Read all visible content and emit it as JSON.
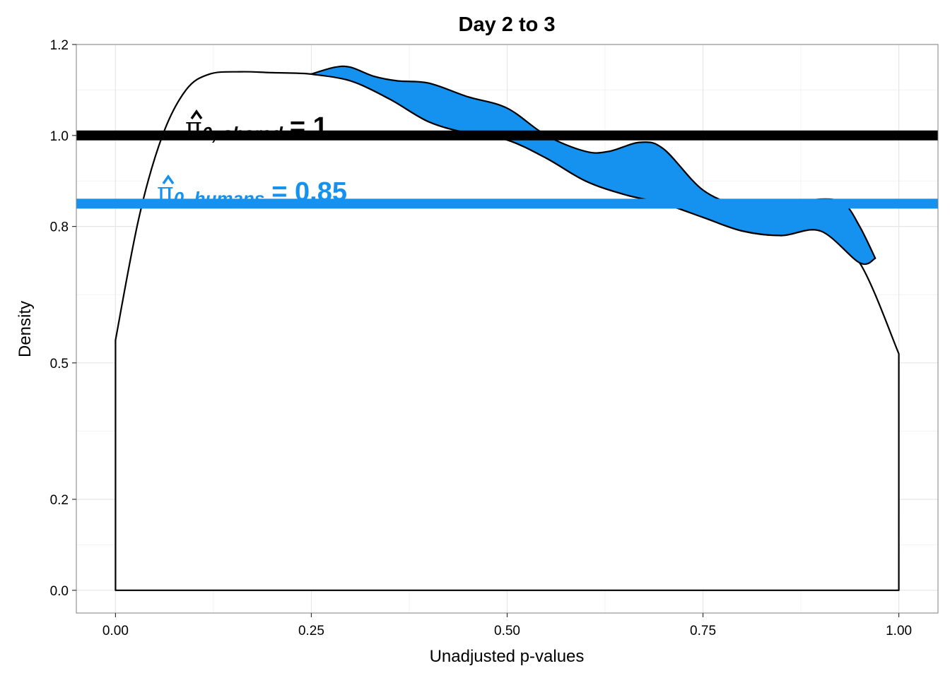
{
  "chart_data": {
    "type": "area",
    "title": "Day 2 to 3",
    "xlabel": "Unadjusted p-values",
    "ylabel": "Density",
    "xlim": [
      -0.05,
      1.05
    ],
    "ylim": [
      -0.05,
      1.2
    ],
    "grid": true,
    "x_ticks": [
      {
        "value": 0.0,
        "label": "0.00"
      },
      {
        "value": 0.25,
        "label": "0.25"
      },
      {
        "value": 0.5,
        "label": "0.50"
      },
      {
        "value": 0.75,
        "label": "0.75"
      },
      {
        "value": 1.0,
        "label": "1.00"
      }
    ],
    "y_ticks": [
      {
        "value": 0.0,
        "label": "0.0"
      },
      {
        "value": 0.2,
        "label": "0.2"
      },
      {
        "value": 0.5,
        "label": "0.5"
      },
      {
        "value": 0.8,
        "label": "0.8"
      },
      {
        "value": 1.0,
        "label": "1.0"
      },
      {
        "value": 1.2,
        "label": "1.2"
      }
    ],
    "series": [
      {
        "role": "shared density",
        "fill": "#ffffff",
        "stroke": "#000000",
        "x": [
          0.0,
          0.03,
          0.06,
          0.09,
          0.12,
          0.16,
          0.2,
          0.25,
          0.3,
          0.35,
          0.4,
          0.45,
          0.5,
          0.55,
          0.6,
          0.65,
          0.7,
          0.75,
          0.8,
          0.85,
          0.9,
          0.95,
          1.0
        ],
        "y": [
          0.55,
          0.82,
          1.0,
          1.1,
          1.135,
          1.14,
          1.138,
          1.135,
          1.12,
          1.08,
          1.03,
          1.005,
          0.99,
          0.95,
          0.9,
          0.87,
          0.85,
          0.82,
          0.79,
          0.78,
          0.79,
          0.72,
          0.52
        ]
      },
      {
        "role": "humans density",
        "fill": "#1592ef",
        "stroke": "#000000",
        "x": [
          0.25,
          0.28,
          0.3,
          0.33,
          0.36,
          0.4,
          0.45,
          0.5,
          0.55,
          0.6,
          0.63,
          0.67,
          0.7,
          0.75,
          0.8,
          0.85,
          0.9,
          0.93,
          0.95,
          0.97
        ],
        "y": [
          1.135,
          1.15,
          1.15,
          1.13,
          1.12,
          1.115,
          1.085,
          1.06,
          1.0,
          0.965,
          0.965,
          0.985,
          0.97,
          0.88,
          0.845,
          0.845,
          0.86,
          0.85,
          0.8,
          0.73
        ]
      }
    ],
    "hlines": [
      {
        "y": 1.0,
        "color": "#000000"
      },
      {
        "y": 0.85,
        "color": "#1592ef"
      }
    ],
    "annotations": [
      {
        "symbol": "π",
        "subscript": "0, shared",
        "value": "= 1",
        "color": "#000000"
      },
      {
        "symbol": "π",
        "subscript": "0, humans",
        "value": "= 0.85",
        "color": "#1592ef"
      }
    ]
  }
}
